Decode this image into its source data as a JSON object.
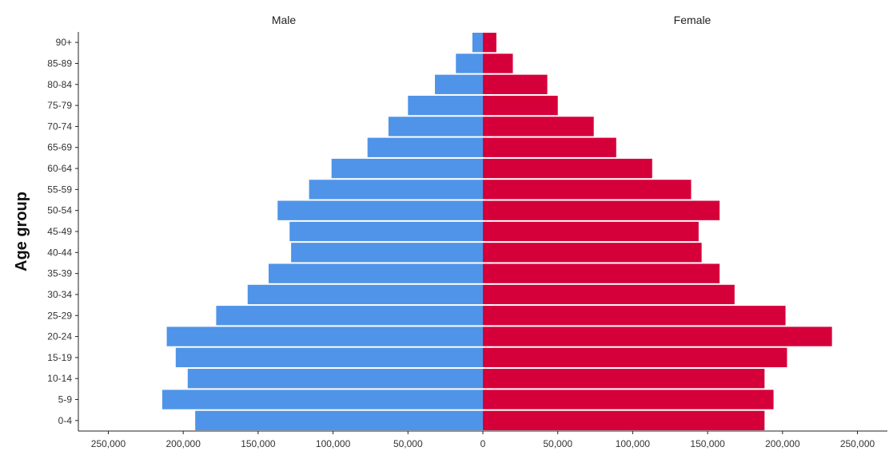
{
  "chart_data": {
    "type": "bar",
    "orientation": "horizontal",
    "subtype": "population-pyramid",
    "panel_titles": [
      "Male",
      "Female"
    ],
    "ylabel": "Age group",
    "xlabel": "",
    "categories": [
      "0-4",
      "5-9",
      "10-14",
      "15-19",
      "20-24",
      "25-29",
      "30-34",
      "35-39",
      "40-44",
      "45-49",
      "50-54",
      "55-59",
      "60-64",
      "65-69",
      "70-74",
      "75-79",
      "80-84",
      "85-89",
      "90+"
    ],
    "series": [
      {
        "name": "Male",
        "color": "#4f94e8",
        "values": [
          192000,
          214000,
          197000,
          205000,
          211000,
          178000,
          157000,
          143000,
          128000,
          129000,
          137000,
          116000,
          101000,
          77000,
          63000,
          50000,
          32000,
          18000,
          7000
        ]
      },
      {
        "name": "Female",
        "color": "#d5003a",
        "values": [
          188000,
          194000,
          188000,
          203000,
          233000,
          202000,
          168000,
          158000,
          146000,
          144000,
          158000,
          139000,
          113000,
          89000,
          74000,
          50000,
          43000,
          20000,
          9000
        ]
      }
    ],
    "x_tick_values": [
      -250000,
      -200000,
      -150000,
      -100000,
      -50000,
      0,
      50000,
      100000,
      150000,
      200000,
      250000
    ],
    "x_tick_labels": [
      "250,000",
      "200,000",
      "150,000",
      "100,000",
      "50,000",
      "0",
      "50,000",
      "100,000",
      "150,000",
      "200,000",
      "250,000"
    ],
    "xlim": [
      -270000,
      270000
    ],
    "grid": false,
    "legend": "none"
  }
}
